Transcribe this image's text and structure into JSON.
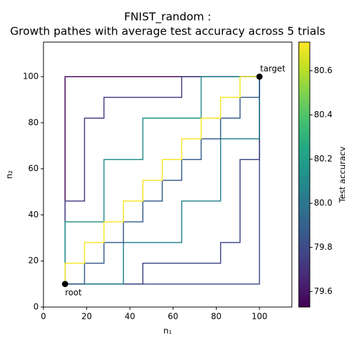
{
  "chart_data": {
    "type": "step-paths",
    "title": "FNIST_random :",
    "subtitle": "Growth pathes with average test accuracy across 5 trials",
    "x_label": "n₁",
    "y_label": "n₂",
    "colorbar_label": "Test accuracy",
    "colormap": "viridis",
    "xlim": [
      0,
      115
    ],
    "ylim": [
      0,
      115
    ],
    "xticks": [
      0,
      20,
      40,
      60,
      80,
      100
    ],
    "yticks": [
      0,
      20,
      40,
      60,
      80,
      100
    ],
    "clim": [
      79.53,
      80.73
    ],
    "cticks": [
      {
        "value": 79.6,
        "label": "79.6"
      },
      {
        "value": 79.8,
        "label": "79.8"
      },
      {
        "value": 80.0,
        "label": "80.0"
      },
      {
        "value": 80.2,
        "label": "80.2"
      },
      {
        "value": 80.4,
        "label": "80.4"
      },
      {
        "value": 80.6,
        "label": "80.6"
      }
    ],
    "series": [
      {
        "value": 79.55,
        "x": [
          10,
          10,
          100
        ],
        "y": [
          10,
          100,
          100
        ]
      },
      {
        "value": 79.8,
        "x": [
          10,
          100,
          100
        ],
        "y": [
          10,
          10,
          100
        ]
      },
      {
        "value": 79.75,
        "x": [
          10,
          10,
          19,
          19,
          28,
          28,
          64,
          64,
          100
        ],
        "y": [
          10,
          46,
          46,
          82,
          82,
          91,
          91,
          100,
          100
        ]
      },
      {
        "value": 79.78,
        "x": [
          10,
          46,
          46,
          82,
          82,
          91,
          91,
          100,
          100
        ],
        "y": [
          10,
          10,
          19,
          19,
          28,
          28,
          64,
          64,
          100
        ]
      },
      {
        "value": 80.12,
        "x": [
          10,
          10,
          28,
          28,
          46,
          46,
          73,
          73,
          100
        ],
        "y": [
          10,
          37,
          37,
          64,
          64,
          82,
          82,
          100,
          100
        ]
      },
      {
        "value": 80.05,
        "x": [
          10,
          37,
          37,
          64,
          64,
          82,
          82,
          100,
          100
        ],
        "y": [
          10,
          10,
          28,
          28,
          46,
          46,
          73,
          73,
          100
        ]
      },
      {
        "value": 79.88,
        "x": [
          10,
          19,
          19,
          28,
          28,
          37,
          37,
          46,
          46,
          55,
          55,
          64,
          64,
          73,
          73,
          82,
          82,
          91,
          91,
          100,
          100
        ],
        "y": [
          10,
          10,
          19,
          19,
          28,
          28,
          37,
          37,
          46,
          46,
          55,
          55,
          64,
          64,
          73,
          73,
          82,
          82,
          91,
          91,
          100
        ]
      },
      {
        "value": 80.72,
        "x": [
          10,
          10,
          19,
          19,
          28,
          28,
          37,
          37,
          46,
          46,
          55,
          55,
          64,
          64,
          73,
          73,
          82,
          82,
          91,
          91,
          100
        ],
        "y": [
          10,
          19,
          19,
          28,
          28,
          37,
          37,
          46,
          46,
          55,
          55,
          64,
          64,
          73,
          73,
          82,
          82,
          91,
          91,
          100,
          100
        ]
      }
    ],
    "points": [
      {
        "label": "root",
        "x": 10,
        "y": 10
      },
      {
        "label": "target",
        "x": 100,
        "y": 100
      }
    ]
  }
}
